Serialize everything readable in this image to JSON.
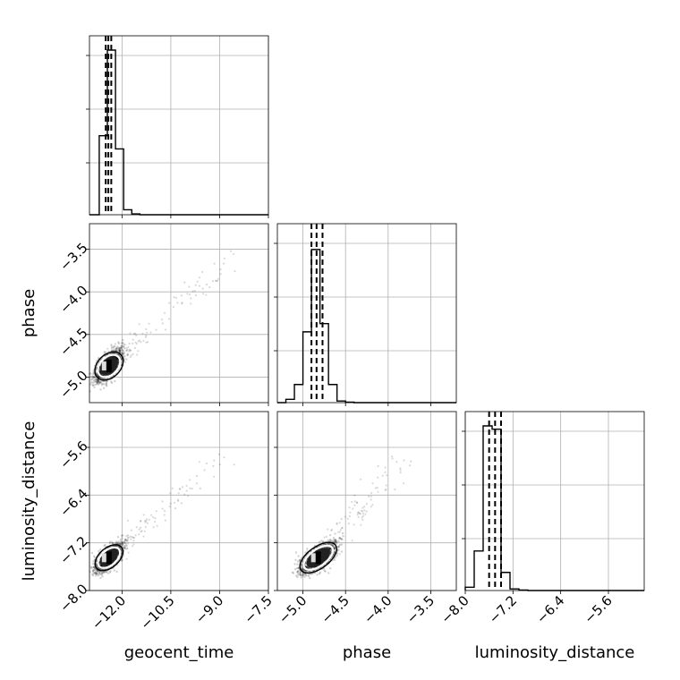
{
  "chart_data": {
    "type": "corner",
    "grid": true,
    "parameters": [
      {
        "name": "geocent_time",
        "axis_label": "geocent_time",
        "range": [
          -13.0,
          -7.5
        ],
        "ticks": [
          "-12.0",
          "-10.5",
          "-9.0",
          "-7.5"
        ],
        "tick_values": [
          -12.0,
          -10.5,
          -9.0,
          -7.5
        ]
      },
      {
        "name": "phase",
        "axis_label": "phase",
        "range": [
          -5.3,
          -3.2
        ],
        "ticks": [
          "-5.0",
          "-4.5",
          "-4.0",
          "-3.5"
        ],
        "tick_values": [
          -5.0,
          -4.5,
          -4.0,
          -3.5
        ]
      },
      {
        "name": "luminosity_distance",
        "axis_label": "luminosity_distance",
        "range": [
          -8.0,
          -5.0
        ],
        "ticks": [
          "-8.0",
          "-7.2",
          "-6.4",
          "-5.6"
        ],
        "tick_values": [
          -8.0,
          -7.2,
          -6.4,
          -5.6
        ]
      }
    ],
    "histograms": [
      {
        "parameter": "geocent_time",
        "bin_edges": [
          -12.7,
          -12.45,
          -12.2,
          -11.95,
          -11.7,
          -11.45
        ],
        "values": [
          0.48,
          1.0,
          0.4,
          0.03,
          0.005
        ],
        "quantiles": [
          -12.5,
          -12.42,
          -12.33
        ]
      },
      {
        "parameter": "phase",
        "bin_edges": [
          -5.2,
          -5.1,
          -5.0,
          -4.9,
          -4.8,
          -4.7,
          -4.6,
          -4.5,
          -4.4
        ],
        "values": [
          0.02,
          0.11,
          0.43,
          0.93,
          0.48,
          0.11,
          0.01,
          0.003
        ],
        "quantiles": [
          -4.9,
          -4.84,
          -4.77
        ]
      },
      {
        "parameter": "luminosity_distance",
        "bin_edges": [
          -8.0,
          -7.85,
          -7.7,
          -7.55,
          -7.4,
          -7.25,
          -7.1,
          -6.95
        ],
        "values": [
          0.02,
          0.24,
          1.0,
          0.98,
          0.11,
          0.01,
          0.003
        ],
        "quantiles": [
          -7.6,
          -7.5,
          -7.4
        ]
      }
    ],
    "scatter_panels": [
      {
        "x": "geocent_time",
        "y": "phase",
        "center": [
          -12.4,
          -4.87
        ],
        "spread": [
          0.2,
          0.09
        ],
        "tail_end": [
          -8.7,
          -3.6
        ]
      },
      {
        "x": "geocent_time",
        "y": "luminosity_distance",
        "center": [
          -12.4,
          -7.45
        ],
        "spread": [
          0.2,
          0.11
        ],
        "tail_end": [
          -8.7,
          -5.7
        ]
      },
      {
        "x": "phase",
        "y": "luminosity_distance",
        "center": [
          -4.82,
          -7.45
        ],
        "spread": [
          0.1,
          0.12
        ],
        "tail_end": [
          -3.8,
          -5.7
        ]
      }
    ]
  }
}
